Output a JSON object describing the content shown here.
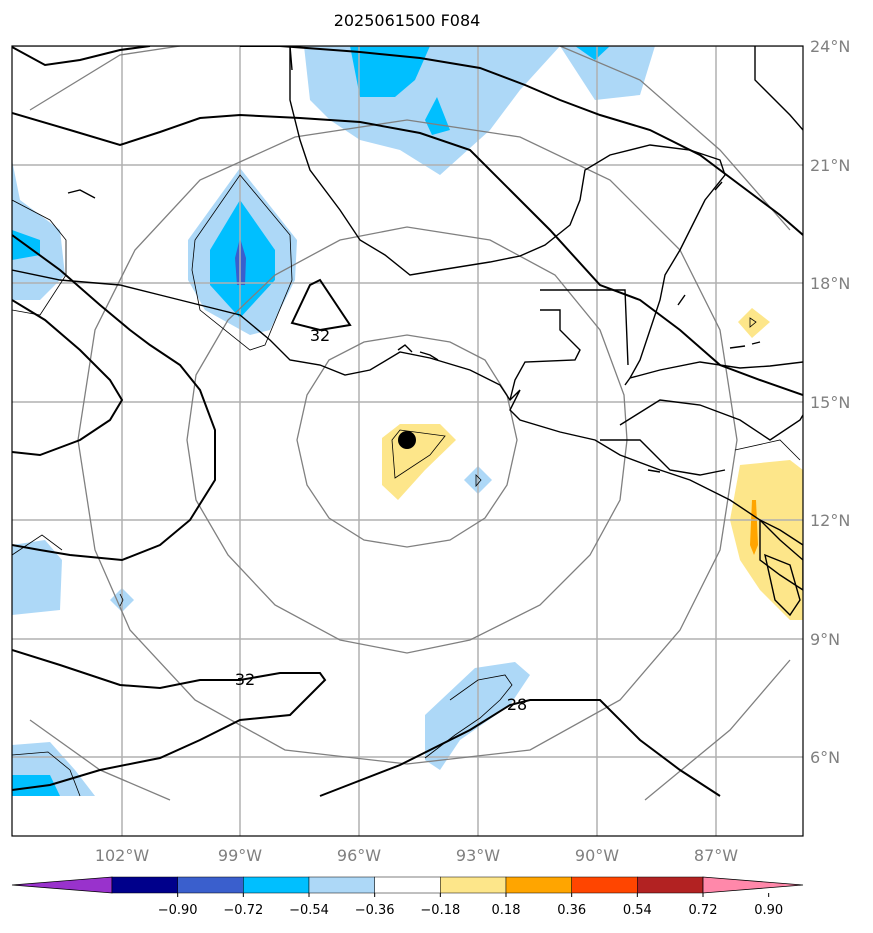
{
  "title": "2025061500 F084",
  "map": {
    "lat_labels": [
      "24°N",
      "21°N",
      "18°N",
      "15°N",
      "12°N",
      "9°N",
      "6°N"
    ],
    "lon_labels": [
      "102°W",
      "99°W",
      "96°W",
      "93°W",
      "90°W",
      "87°W"
    ],
    "contour_labels": [
      "32",
      "32",
      "28"
    ],
    "storm_center": {
      "lat": 14.0,
      "lon": -94.8
    }
  },
  "colorbar": {
    "tick_labels": [
      "−0.90",
      "−0.72",
      "−0.54",
      "−0.36",
      "−0.18",
      "0.18",
      "0.36",
      "0.54",
      "0.72",
      "0.90"
    ],
    "colors": [
      "#9932cc",
      "#00008b",
      "#3a5fcd",
      "#00bfff",
      "#add8f7",
      "#ffffff",
      "#fde68a",
      "#ffa500",
      "#ff4500",
      "#b22222",
      "#ff88aa"
    ]
  }
}
